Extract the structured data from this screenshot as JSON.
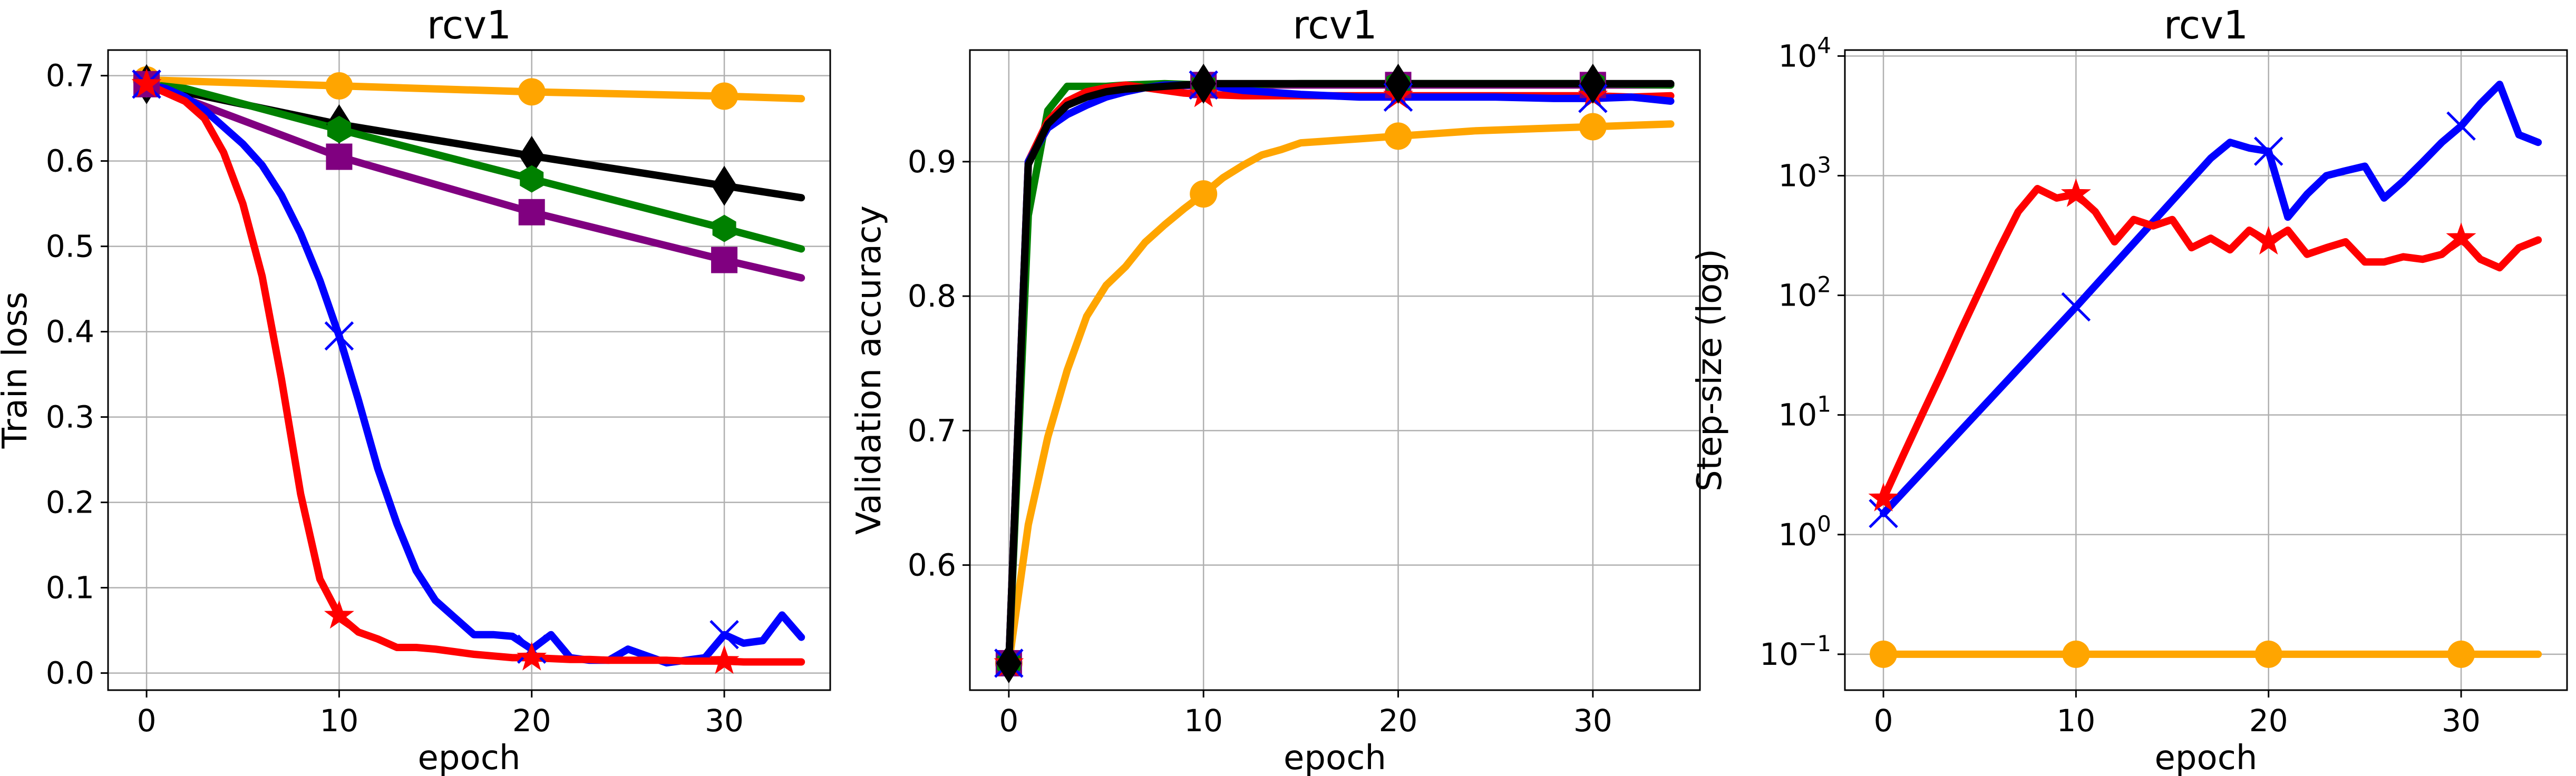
{
  "chart_data": [
    {
      "type": "line",
      "title": "rcv1",
      "xlabel": "epoch",
      "ylabel": "Train loss",
      "xlim": [
        -2,
        35.5
      ],
      "ylim": [
        -0.02,
        0.73
      ],
      "xticks": [
        0,
        10,
        20,
        30
      ],
      "yticks": [
        0.0,
        0.1,
        0.2,
        0.3,
        0.4,
        0.5,
        0.6,
        0.7
      ],
      "ytick_labels": [
        "0.0",
        "0.1",
        "0.2",
        "0.3",
        "0.4",
        "0.5",
        "0.6",
        "0.7"
      ],
      "grid": true,
      "series": [
        {
          "name": "orange",
          "color": "#ffa500",
          "marker": "circle",
          "x": [
            0,
            10,
            20,
            30,
            34
          ],
          "y": [
            0.695,
            0.688,
            0.681,
            0.676,
            0.673
          ]
        },
        {
          "name": "black",
          "color": "#000000",
          "marker": "diamond",
          "x": [
            0,
            10,
            20,
            30,
            34
          ],
          "y": [
            0.69,
            0.643,
            0.606,
            0.571,
            0.557
          ]
        },
        {
          "name": "green",
          "color": "#008000",
          "marker": "hexagon",
          "x": [
            0,
            2,
            10,
            20,
            30,
            34
          ],
          "y": [
            0.69,
            0.685,
            0.637,
            0.579,
            0.521,
            0.497
          ]
        },
        {
          "name": "purple",
          "color": "#800080",
          "marker": "square",
          "x": [
            0,
            10,
            20,
            30,
            34
          ],
          "y": [
            0.69,
            0.605,
            0.54,
            0.484,
            0.463
          ]
        },
        {
          "name": "blue",
          "color": "#0000ff",
          "marker": "x",
          "x": [
            0,
            1,
            2,
            3,
            4,
            5,
            6,
            7,
            8,
            9,
            10,
            11,
            12,
            13,
            14,
            15,
            16,
            17,
            18,
            19,
            20,
            21,
            22,
            23,
            24,
            25,
            26,
            27,
            28,
            29,
            30,
            31,
            32,
            33,
            34
          ],
          "y": [
            0.69,
            0.685,
            0.675,
            0.66,
            0.64,
            0.62,
            0.595,
            0.56,
            0.515,
            0.46,
            0.395,
            0.32,
            0.24,
            0.175,
            0.12,
            0.085,
            0.065,
            0.045,
            0.045,
            0.043,
            0.028,
            0.045,
            0.018,
            0.015,
            0.015,
            0.028,
            0.02,
            0.012,
            0.015,
            0.018,
            0.045,
            0.035,
            0.038,
            0.068,
            0.042
          ]
        },
        {
          "name": "red",
          "color": "#ff0000",
          "marker": "star",
          "x": [
            0,
            1,
            2,
            3,
            4,
            5,
            6,
            7,
            8,
            9,
            10,
            11,
            12,
            13,
            14,
            15,
            16,
            17,
            18,
            19,
            20,
            21,
            22,
            23,
            24,
            25,
            26,
            27,
            28,
            29,
            30,
            31,
            32,
            33,
            34
          ],
          "y": [
            0.69,
            0.68,
            0.67,
            0.65,
            0.61,
            0.55,
            0.465,
            0.345,
            0.21,
            0.11,
            0.067,
            0.048,
            0.04,
            0.03,
            0.03,
            0.028,
            0.025,
            0.022,
            0.02,
            0.018,
            0.018,
            0.017,
            0.016,
            0.016,
            0.015,
            0.015,
            0.015,
            0.015,
            0.014,
            0.014,
            0.014,
            0.013,
            0.013,
            0.013,
            0.013
          ]
        }
      ]
    },
    {
      "type": "line",
      "title": "rcv1",
      "xlabel": "epoch",
      "ylabel": "Validation accuracy",
      "xlim": [
        -2,
        35.5
      ],
      "ylim": [
        0.507,
        0.983
      ],
      "xticks": [
        0,
        10,
        20,
        30
      ],
      "yticks": [
        0.6,
        0.7,
        0.8,
        0.9
      ],
      "ytick_labels": [
        "0.6",
        "0.7",
        "0.8",
        "0.9"
      ],
      "grid": true,
      "series": [
        {
          "name": "orange",
          "color": "#ffa500",
          "marker": "circle",
          "x": [
            0,
            1,
            2,
            3,
            4,
            5,
            6,
            7,
            8,
            9,
            10,
            11,
            12,
            13,
            14,
            15,
            16,
            17,
            18,
            19,
            20,
            22,
            24,
            26,
            28,
            30,
            32,
            34
          ],
          "y": [
            0.527,
            0.63,
            0.695,
            0.745,
            0.785,
            0.808,
            0.822,
            0.84,
            0.853,
            0.865,
            0.876,
            0.888,
            0.897,
            0.905,
            0.909,
            0.914,
            0.915,
            0.916,
            0.917,
            0.918,
            0.919,
            0.921,
            0.923,
            0.924,
            0.925,
            0.926,
            0.927,
            0.928
          ]
        },
        {
          "name": "purple",
          "color": "#800080",
          "marker": "square",
          "x": [
            0,
            1,
            2,
            3,
            4,
            5,
            6,
            7,
            8,
            10,
            15,
            20,
            25,
            30,
            34
          ],
          "y": [
            0.527,
            0.9,
            0.93,
            0.945,
            0.95,
            0.953,
            0.955,
            0.956,
            0.956,
            0.957,
            0.957,
            0.957,
            0.957,
            0.957,
            0.957
          ]
        },
        {
          "name": "green",
          "color": "#008000",
          "marker": "hexagon",
          "x": [
            0,
            1,
            2,
            3,
            4,
            5,
            6,
            8,
            10,
            15,
            20,
            25,
            30,
            34
          ],
          "y": [
            0.527,
            0.86,
            0.938,
            0.956,
            0.956,
            0.956,
            0.957,
            0.958,
            0.957,
            0.958,
            0.958,
            0.958,
            0.958,
            0.957
          ]
        },
        {
          "name": "red",
          "color": "#ff0000",
          "marker": "star",
          "x": [
            0,
            1,
            2,
            3,
            4,
            5,
            6,
            7,
            8,
            9,
            10,
            12,
            15,
            18,
            20,
            22,
            25,
            28,
            30,
            32,
            34
          ],
          "y": [
            0.527,
            0.9,
            0.93,
            0.945,
            0.952,
            0.955,
            0.957,
            0.955,
            0.953,
            0.951,
            0.95,
            0.949,
            0.949,
            0.949,
            0.949,
            0.949,
            0.949,
            0.949,
            0.949,
            0.948,
            0.949
          ]
        },
        {
          "name": "blue",
          "color": "#0000ff",
          "marker": "x",
          "x": [
            0,
            1,
            2,
            3,
            4,
            5,
            6,
            7,
            8,
            9,
            10,
            12,
            15,
            18,
            20,
            22,
            25,
            28,
            30,
            32,
            34
          ],
          "y": [
            0.527,
            0.9,
            0.925,
            0.935,
            0.942,
            0.948,
            0.952,
            0.955,
            0.957,
            0.957,
            0.957,
            0.953,
            0.95,
            0.948,
            0.948,
            0.948,
            0.948,
            0.947,
            0.947,
            0.948,
            0.945
          ]
        },
        {
          "name": "black",
          "color": "#000000",
          "marker": "diamond",
          "x": [
            0,
            1,
            2,
            3,
            4,
            5,
            6,
            7,
            8,
            10,
            15,
            20,
            25,
            30,
            34
          ],
          "y": [
            0.527,
            0.898,
            0.928,
            0.942,
            0.948,
            0.952,
            0.954,
            0.955,
            0.956,
            0.958,
            0.958,
            0.958,
            0.958,
            0.958,
            0.958
          ]
        }
      ]
    },
    {
      "type": "line",
      "title": "rcv1",
      "xlabel": "epoch",
      "ylabel": "Step-size (log)",
      "yscale": "log",
      "xlim": [
        -2,
        35.5
      ],
      "ylim_log10": [
        -1.3,
        4.05
      ],
      "xticks": [
        0,
        10,
        20,
        30
      ],
      "yticks_log10": [
        -1,
        0,
        1,
        2,
        3,
        4
      ],
      "ytick_labels": [
        "10",
        "10",
        "10",
        "10",
        "10",
        "10"
      ],
      "ytick_exponents": [
        "−1",
        "0",
        "1",
        "2",
        "3",
        "4"
      ],
      "grid": true,
      "series": [
        {
          "name": "orange",
          "color": "#ffa500",
          "marker": "circle",
          "x": [
            0,
            10,
            20,
            30,
            34
          ],
          "y": [
            0.1,
            0.1,
            0.1,
            0.1,
            0.1
          ]
        },
        {
          "name": "blue",
          "color": "#0000ff",
          "marker": "x",
          "x": [
            0,
            10,
            17,
            18,
            19,
            20,
            21,
            22,
            23,
            24,
            25,
            26,
            27,
            28,
            29,
            30,
            31,
            32,
            33,
            34
          ],
          "y": [
            1.5,
            80,
            1400,
            1900,
            1700,
            1600,
            450,
            700,
            1000,
            1100,
            1200,
            650,
            900,
            1300,
            1900,
            2600,
            4000,
            5800,
            2200,
            1900
          ]
        },
        {
          "name": "red",
          "color": "#ff0000",
          "marker": "star",
          "x": [
            0,
            1,
            2,
            3,
            4,
            5,
            6,
            7,
            8,
            9,
            10,
            11,
            12,
            13,
            14,
            15,
            16,
            17,
            18,
            19,
            20,
            21,
            22,
            23,
            24,
            25,
            26,
            27,
            28,
            29,
            30,
            31,
            32,
            33,
            34
          ],
          "y": [
            2,
            4.5,
            10,
            22,
            50,
            110,
            240,
            500,
            780,
            650,
            700,
            500,
            280,
            430,
            380,
            430,
            250,
            300,
            240,
            350,
            280,
            350,
            220,
            250,
            280,
            190,
            190,
            210,
            200,
            220,
            300,
            200,
            170,
            250,
            290
          ]
        }
      ]
    }
  ]
}
